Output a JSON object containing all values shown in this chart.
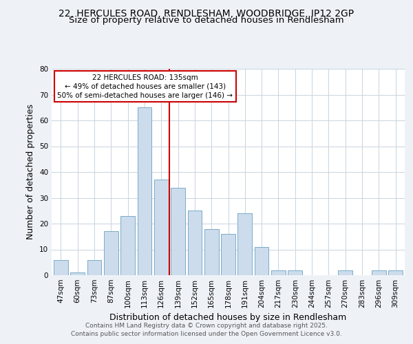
{
  "title_line1": "22, HERCULES ROAD, RENDLESHAM, WOODBRIDGE, IP12 2GP",
  "title_line2": "Size of property relative to detached houses in Rendlesham",
  "xlabel": "Distribution of detached houses by size in Rendlesham",
  "ylabel": "Number of detached properties",
  "bar_labels": [
    "47sqm",
    "60sqm",
    "73sqm",
    "87sqm",
    "100sqm",
    "113sqm",
    "126sqm",
    "139sqm",
    "152sqm",
    "165sqm",
    "178sqm",
    "191sqm",
    "204sqm",
    "217sqm",
    "230sqm",
    "244sqm",
    "257sqm",
    "270sqm",
    "283sqm",
    "296sqm",
    "309sqm"
  ],
  "bar_values": [
    6,
    1,
    6,
    17,
    23,
    65,
    37,
    34,
    25,
    18,
    16,
    24,
    11,
    2,
    2,
    0,
    0,
    2,
    0,
    2,
    2
  ],
  "bar_color": "#ccdcec",
  "bar_edge_color": "#7aaac8",
  "vline_x": 6.5,
  "vline_color": "#cc0000",
  "annotation_line1": "22 HERCULES ROAD: 135sqm",
  "annotation_line2": "← 49% of detached houses are smaller (143)",
  "annotation_line3": "50% of semi-detached houses are larger (146) →",
  "ylim": [
    0,
    80
  ],
  "yticks": [
    0,
    10,
    20,
    30,
    40,
    50,
    60,
    70,
    80
  ],
  "background_color": "#eef2f7",
  "plot_bg_color": "#ffffff",
  "footer_line1": "Contains HM Land Registry data © Crown copyright and database right 2025.",
  "footer_line2": "Contains public sector information licensed under the Open Government Licence v3.0.",
  "grid_color": "#c8d4e0",
  "title_fontsize": 10,
  "subtitle_fontsize": 9.5,
  "axis_label_fontsize": 9,
  "tick_fontsize": 7.5,
  "annot_fontsize": 7.5,
  "footer_fontsize": 6.5
}
